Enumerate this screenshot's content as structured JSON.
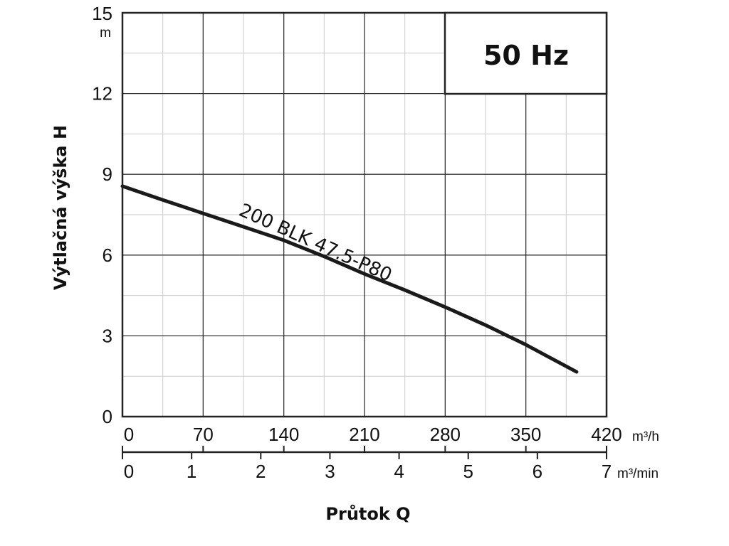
{
  "chart_data": {
    "type": "line",
    "title": "",
    "badge": "50 Hz",
    "xlabel": "Průtok Q",
    "ylabel": "Výtlačná výška H",
    "y_unit": "m",
    "x_unit": "m³/h",
    "x2_unit": "m³/min",
    "xlim": [
      0,
      420
    ],
    "ylim": [
      0,
      15
    ],
    "x_ticks": [
      "0",
      "70",
      "140",
      "210",
      "280",
      "350",
      "420"
    ],
    "x2_ticks": [
      "0",
      "1",
      "2",
      "3",
      "4",
      "5",
      "6",
      "7"
    ],
    "y_ticks": [
      "0",
      "3",
      "6",
      "9",
      "12",
      "15"
    ],
    "grid": true,
    "series": [
      {
        "name": "200 BLK 47.5-P80",
        "x": [
          0,
          35,
          70,
          105,
          140,
          175,
          210,
          245,
          280,
          315,
          350,
          394
        ],
        "y": [
          8.56,
          8.05,
          7.55,
          7.05,
          6.55,
          5.95,
          5.3,
          4.7,
          4.07,
          3.4,
          2.67,
          1.66
        ]
      }
    ]
  }
}
